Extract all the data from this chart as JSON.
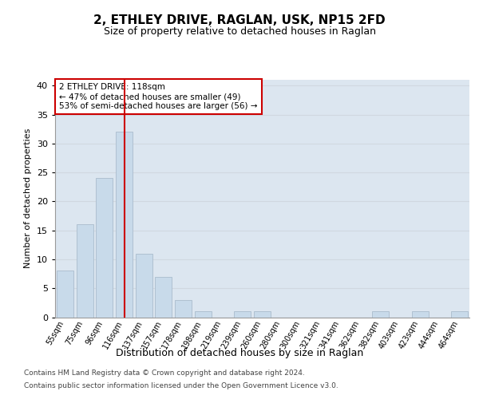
{
  "title1": "2, ETHLEY DRIVE, RAGLAN, USK, NP15 2FD",
  "title2": "Size of property relative to detached houses in Raglan",
  "xlabel": "Distribution of detached houses by size in Raglan",
  "ylabel": "Number of detached properties",
  "categories": [
    "55sqm",
    "75sqm",
    "96sqm",
    "116sqm",
    "137sqm",
    "157sqm",
    "178sqm",
    "198sqm",
    "219sqm",
    "239sqm",
    "260sqm",
    "280sqm",
    "300sqm",
    "321sqm",
    "341sqm",
    "362sqm",
    "382sqm",
    "403sqm",
    "423sqm",
    "444sqm",
    "464sqm"
  ],
  "values": [
    8,
    16,
    24,
    32,
    11,
    7,
    3,
    1,
    0,
    1,
    1,
    0,
    0,
    0,
    0,
    0,
    1,
    0,
    1,
    0,
    1
  ],
  "bar_color": "#c8daea",
  "bar_edge_color": "#aabccc",
  "grid_color": "#d0d8e0",
  "background_color": "#dce6f0",
  "annotation_text": "2 ETHLEY DRIVE: 118sqm\n← 47% of detached houses are smaller (49)\n53% of semi-detached houses are larger (56) →",
  "annotation_box_facecolor": "#ffffff",
  "annotation_box_edge": "#cc0000",
  "red_line_index": 3,
  "ylim": [
    0,
    41
  ],
  "yticks": [
    0,
    5,
    10,
    15,
    20,
    25,
    30,
    35,
    40
  ],
  "footer_line1": "Contains HM Land Registry data © Crown copyright and database right 2024.",
  "footer_line2": "Contains public sector information licensed under the Open Government Licence v3.0.",
  "title1_fontsize": 11,
  "title2_fontsize": 9,
  "ylabel_fontsize": 8,
  "xlabel_fontsize": 9,
  "tick_fontsize": 7,
  "annotation_fontsize": 7.5,
  "footer_fontsize": 6.5
}
